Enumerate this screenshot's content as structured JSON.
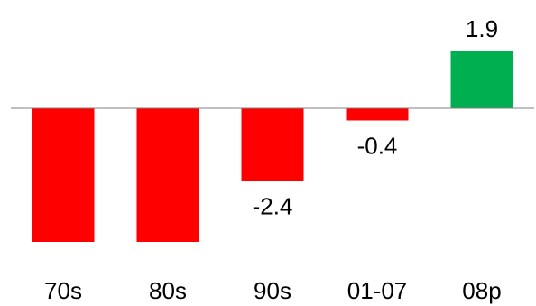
{
  "chart_data": {
    "type": "bar",
    "categories": [
      "70s",
      "80s",
      "90s",
      "01-07",
      "08p"
    ],
    "values": [
      -4.4,
      -4.4,
      -2.4,
      -0.4,
      1.9
    ],
    "data_labels": [
      "",
      "",
      "-2.4",
      "-0.4",
      "1.9"
    ],
    "title": "",
    "xlabel": "",
    "ylabel": "",
    "ylim": [
      -4.4,
      1.9
    ],
    "grid": false,
    "legend": "none",
    "colors": {
      "negative": "#ff0000",
      "positive": "#00b050",
      "axis": "#808080",
      "text": "#000000"
    }
  }
}
